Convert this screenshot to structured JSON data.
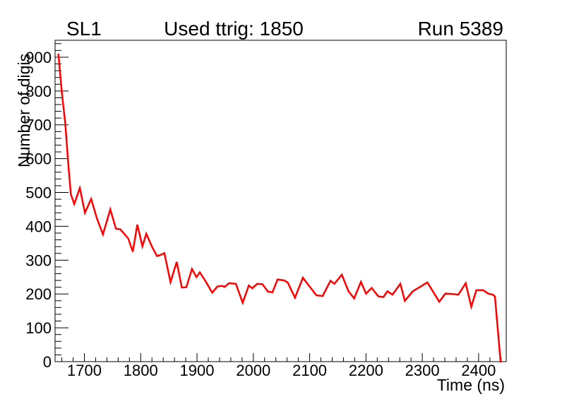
{
  "titles": {
    "left": "SL1",
    "center": "Used ttrig: 1850",
    "right": "Run 5389"
  },
  "chart_data": {
    "type": "line",
    "title": "Used ttrig: 1850",
    "subtitle_left": "SL1",
    "subtitle_right": "Run 5389",
    "xlabel": "Time (ns)",
    "ylabel": "Number of digis",
    "xlim": [
      1648,
      2449
    ],
    "ylim": [
      0,
      950
    ],
    "x_major_ticks": [
      1700,
      1800,
      1900,
      2000,
      2100,
      2200,
      2300,
      2400
    ],
    "x_minor_step": 20,
    "y_major_ticks": [
      0,
      100,
      200,
      300,
      400,
      500,
      600,
      700,
      800,
      900
    ],
    "y_minor_step": 20,
    "grid": false,
    "legend": "none",
    "line_color": "#ff0000",
    "axis_color": "#000000",
    "series": [
      {
        "name": "number-of-digis-vs-time",
        "points": [
          [
            1654,
            908
          ],
          [
            1660,
            795
          ],
          [
            1666,
            705
          ],
          [
            1671,
            595
          ],
          [
            1676,
            495
          ],
          [
            1682,
            466
          ],
          [
            1692,
            513
          ],
          [
            1701,
            440
          ],
          [
            1712,
            481
          ],
          [
            1722,
            425
          ],
          [
            1733,
            376
          ],
          [
            1746,
            450
          ],
          [
            1756,
            393
          ],
          [
            1764,
            391
          ],
          [
            1778,
            364
          ],
          [
            1786,
            325
          ],
          [
            1794,
            405
          ],
          [
            1803,
            341
          ],
          [
            1810,
            378
          ],
          [
            1820,
            340
          ],
          [
            1829,
            312
          ],
          [
            1836,
            316
          ],
          [
            1842,
            321
          ],
          [
            1853,
            235
          ],
          [
            1864,
            295
          ],
          [
            1873,
            219
          ],
          [
            1881,
            220
          ],
          [
            1891,
            274
          ],
          [
            1899,
            250
          ],
          [
            1905,
            264
          ],
          [
            1915,
            238
          ],
          [
            1927,
            204
          ],
          [
            1936,
            222
          ],
          [
            1944,
            224
          ],
          [
            1949,
            221
          ],
          [
            1957,
            232
          ],
          [
            1969,
            230
          ],
          [
            1981,
            174
          ],
          [
            1992,
            225
          ],
          [
            1998,
            217
          ],
          [
            2007,
            230
          ],
          [
            2016,
            229
          ],
          [
            2026,
            207
          ],
          [
            2034,
            205
          ],
          [
            2043,
            243
          ],
          [
            2055,
            240
          ],
          [
            2061,
            234
          ],
          [
            2074,
            189
          ],
          [
            2088,
            248
          ],
          [
            2097,
            228
          ],
          [
            2112,
            196
          ],
          [
            2123,
            194
          ],
          [
            2137,
            239
          ],
          [
            2144,
            230
          ],
          [
            2157,
            257
          ],
          [
            2169,
            208
          ],
          [
            2179,
            187
          ],
          [
            2191,
            236
          ],
          [
            2200,
            201
          ],
          [
            2210,
            218
          ],
          [
            2222,
            193
          ],
          [
            2231,
            191
          ],
          [
            2238,
            208
          ],
          [
            2247,
            198
          ],
          [
            2261,
            230
          ],
          [
            2269,
            180
          ],
          [
            2283,
            208
          ],
          [
            2293,
            218
          ],
          [
            2309,
            234
          ],
          [
            2330,
            177
          ],
          [
            2341,
            201
          ],
          [
            2353,
            200
          ],
          [
            2364,
            198
          ],
          [
            2377,
            232
          ],
          [
            2387,
            162
          ],
          [
            2396,
            211
          ],
          [
            2408,
            211
          ],
          [
            2417,
            201
          ],
          [
            2425,
            198
          ],
          [
            2429,
            193
          ],
          [
            2439,
            0
          ]
        ]
      }
    ]
  }
}
